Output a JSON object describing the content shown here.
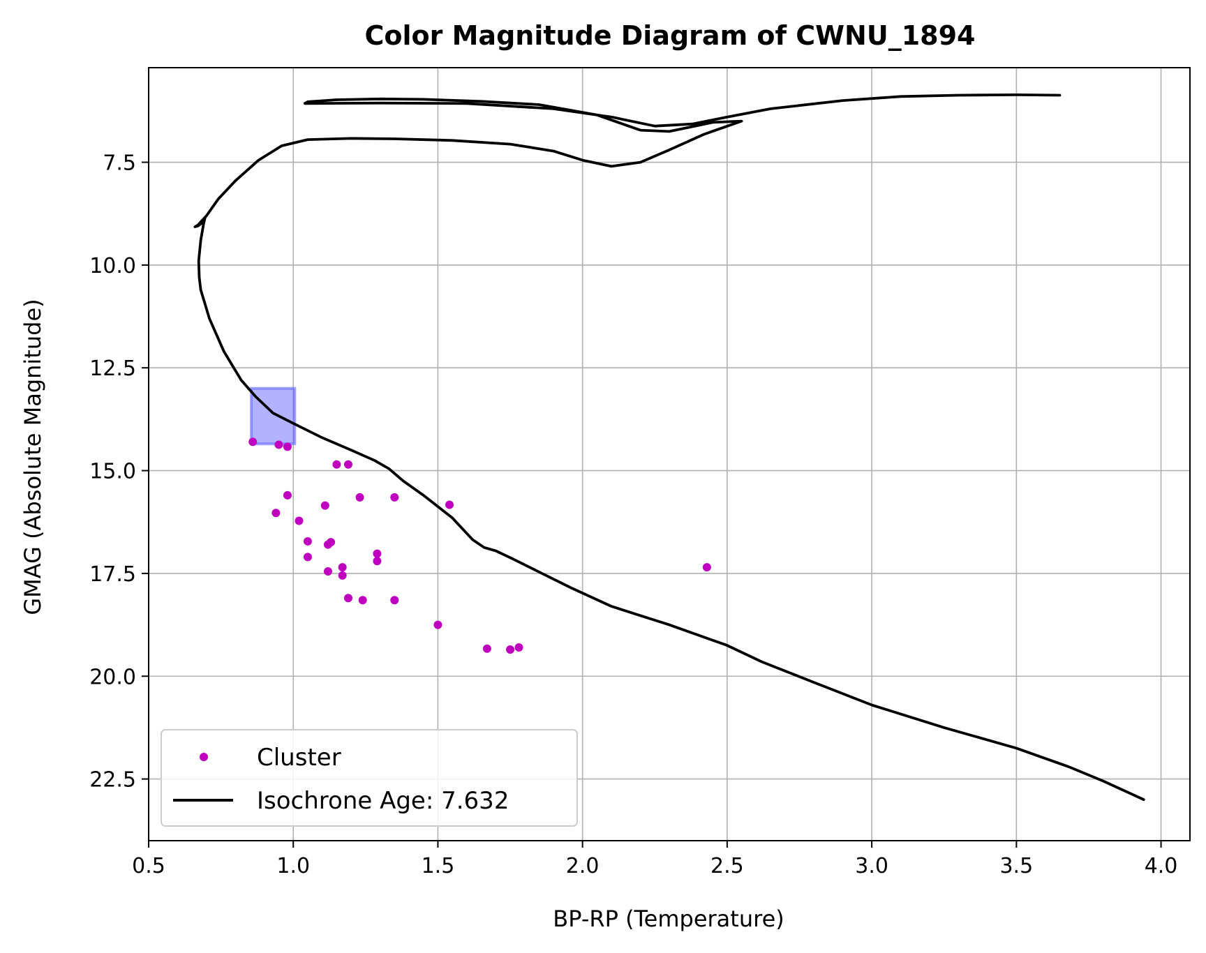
{
  "chart_data": {
    "type": "scatter",
    "title": "Color Magnitude Diagram of CWNU_1894",
    "xlabel": "BP-RP (Temperature)",
    "ylabel": "GMAG (Absolute Magnitude)",
    "xlim": [
      0.5,
      4.1
    ],
    "ylim": [
      24.0,
      5.2
    ],
    "y_inverted": true,
    "grid": true,
    "legend_position": "lower left",
    "xticks": [
      0.5,
      1.0,
      1.5,
      2.0,
      2.5,
      3.0,
      3.5,
      4.0
    ],
    "xtick_labels": [
      "0.5",
      "1.0",
      "1.5",
      "2.0",
      "2.5",
      "3.0",
      "3.5",
      "4.0"
    ],
    "yticks": [
      7.5,
      10.0,
      12.5,
      15.0,
      17.5,
      20.0,
      22.5
    ],
    "ytick_labels": [
      "7.5",
      "10.0",
      "12.5",
      "15.0",
      "17.5",
      "20.0",
      "22.5"
    ],
    "series": [
      {
        "name": "Cluster",
        "kind": "scatter",
        "color": "#bf00bf",
        "points": [
          [
            0.86,
            14.3
          ],
          [
            0.95,
            14.37
          ],
          [
            0.98,
            14.42
          ],
          [
            1.15,
            14.85
          ],
          [
            1.19,
            14.85
          ],
          [
            0.98,
            15.6
          ],
          [
            0.94,
            16.03
          ],
          [
            1.11,
            15.85
          ],
          [
            1.23,
            15.65
          ],
          [
            1.35,
            15.65
          ],
          [
            1.54,
            15.83
          ],
          [
            1.02,
            16.22
          ],
          [
            1.05,
            16.72
          ],
          [
            1.12,
            16.8
          ],
          [
            1.13,
            16.74
          ],
          [
            1.05,
            17.1
          ],
          [
            1.29,
            17.02
          ],
          [
            1.29,
            17.2
          ],
          [
            1.12,
            17.45
          ],
          [
            1.17,
            17.35
          ],
          [
            1.17,
            17.55
          ],
          [
            1.19,
            18.1
          ],
          [
            1.24,
            18.15
          ],
          [
            1.35,
            18.15
          ],
          [
            1.5,
            18.75
          ],
          [
            1.67,
            19.33
          ],
          [
            1.75,
            19.35
          ],
          [
            1.78,
            19.3
          ],
          [
            2.43,
            17.35
          ]
        ]
      },
      {
        "name": "Isochrone Age: 7.632",
        "kind": "line",
        "color": "#000000",
        "points": [
          [
            3.94,
            23.0
          ],
          [
            3.8,
            22.55
          ],
          [
            3.68,
            22.2
          ],
          [
            3.5,
            21.75
          ],
          [
            3.25,
            21.25
          ],
          [
            3.0,
            20.7
          ],
          [
            2.8,
            20.15
          ],
          [
            2.62,
            19.65
          ],
          [
            2.5,
            19.25
          ],
          [
            2.3,
            18.75
          ],
          [
            2.1,
            18.3
          ],
          [
            1.96,
            17.85
          ],
          [
            1.86,
            17.5
          ],
          [
            1.76,
            17.15
          ],
          [
            1.7,
            16.95
          ],
          [
            1.66,
            16.87
          ],
          [
            1.62,
            16.68
          ],
          [
            1.55,
            16.15
          ],
          [
            1.45,
            15.6
          ],
          [
            1.38,
            15.25
          ],
          [
            1.33,
            14.95
          ],
          [
            1.28,
            14.75
          ],
          [
            1.2,
            14.5
          ],
          [
            1.1,
            14.2
          ],
          [
            1.0,
            13.85
          ],
          [
            0.93,
            13.6
          ],
          [
            0.87,
            13.2
          ],
          [
            0.82,
            12.8
          ],
          [
            0.76,
            12.1
          ],
          [
            0.71,
            11.3
          ],
          [
            0.68,
            10.6
          ],
          [
            0.675,
            10.3
          ],
          [
            0.673,
            9.9
          ],
          [
            0.68,
            9.4
          ],
          [
            0.69,
            9.0
          ],
          [
            0.695,
            8.85
          ],
          [
            0.69,
            8.95
          ],
          [
            0.67,
            9.05
          ],
          [
            0.66,
            9.07
          ],
          [
            0.67,
            9.03
          ],
          [
            0.7,
            8.8
          ],
          [
            0.74,
            8.4
          ],
          [
            0.8,
            7.95
          ],
          [
            0.88,
            7.45
          ],
          [
            0.96,
            7.1
          ],
          [
            1.05,
            6.95
          ],
          [
            1.2,
            6.92
          ],
          [
            1.35,
            6.93
          ],
          [
            1.55,
            6.97
          ],
          [
            1.75,
            7.06
          ],
          [
            1.9,
            7.23
          ],
          [
            2.0,
            7.45
          ],
          [
            2.1,
            7.6
          ],
          [
            2.2,
            7.5
          ],
          [
            2.3,
            7.2
          ],
          [
            2.42,
            6.82
          ],
          [
            2.55,
            6.5
          ],
          [
            2.45,
            6.53
          ],
          [
            2.3,
            6.75
          ],
          [
            2.2,
            6.72
          ],
          [
            2.05,
            6.35
          ],
          [
            1.85,
            6.1
          ],
          [
            1.65,
            6.02
          ],
          [
            1.45,
            5.97
          ],
          [
            1.3,
            5.96
          ],
          [
            1.15,
            5.98
          ],
          [
            1.05,
            6.03
          ],
          [
            1.04,
            6.07
          ],
          [
            1.3,
            6.06
          ],
          [
            1.6,
            6.07
          ],
          [
            1.9,
            6.2
          ],
          [
            2.1,
            6.4
          ],
          [
            2.25,
            6.62
          ],
          [
            2.38,
            6.57
          ],
          [
            2.5,
            6.4
          ],
          [
            2.65,
            6.2
          ],
          [
            2.9,
            6.0
          ],
          [
            3.1,
            5.9
          ],
          [
            3.3,
            5.87
          ],
          [
            3.5,
            5.86
          ],
          [
            3.65,
            5.87
          ]
        ]
      }
    ],
    "highlight_box": {
      "x": [
        0.855,
        1.005
      ],
      "y": [
        13.0,
        14.35
      ],
      "color": "#6666ff"
    }
  }
}
